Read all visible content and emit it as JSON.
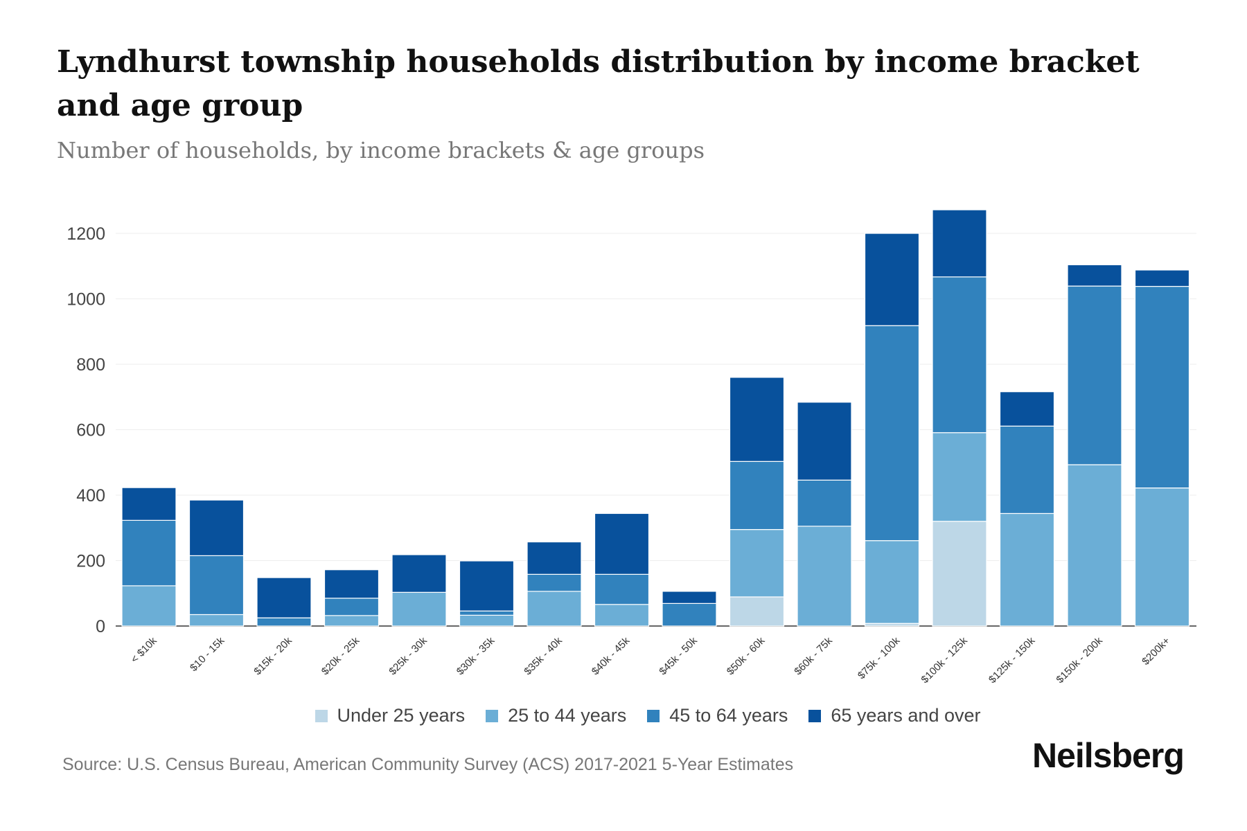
{
  "title": "Lyndhurst township households distribution by income bracket and age group",
  "subtitle": "Number of households, by income brackets & age groups",
  "source": "Source: U.S. Census Bureau, American Community Survey (ACS) 2017-2021 5-Year Estimates",
  "logo": "Neilsberg",
  "chart_data": {
    "type": "bar",
    "stacked": true,
    "title": "Lyndhurst township households distribution by income bracket and age group",
    "xlabel": "",
    "ylabel": "",
    "ylim": [
      0,
      1300
    ],
    "yticks": [
      0,
      200,
      400,
      600,
      800,
      1000,
      1200
    ],
    "grid": true,
    "legend_position": "bottom",
    "categories": [
      "< $10k",
      "$10 - 15k",
      "$15k - 20k",
      "$20k - 25k",
      "$25k - 30k",
      "$30k - 35k",
      "$35k - 40k",
      "$40k - 45k",
      "$45k - 50k",
      "$50k - 60k",
      "$60k - 75k",
      "$75k - 100k",
      "$100k - 125k",
      "$125k - 150k",
      "$150k - 200k",
      "$200k+"
    ],
    "series": [
      {
        "name": "Under 25 years",
        "color": "#bdd7e7",
        "values": [
          0,
          0,
          0,
          0,
          0,
          0,
          0,
          0,
          0,
          89,
          0,
          8,
          320,
          0,
          0,
          0
        ]
      },
      {
        "name": "25 to 44 years",
        "color": "#6baed6",
        "values": [
          123,
          35,
          0,
          32,
          103,
          33,
          106,
          66,
          0,
          206,
          305,
          253,
          271,
          344,
          493,
          422
        ]
      },
      {
        "name": "45 to 64 years",
        "color": "#3182bd",
        "values": [
          200,
          180,
          25,
          53,
          0,
          13,
          52,
          92,
          69,
          208,
          141,
          657,
          476,
          267,
          546,
          616
        ]
      },
      {
        "name": "65 years and over",
        "color": "#08519c",
        "values": [
          100,
          170,
          123,
          87,
          115,
          153,
          99,
          186,
          37,
          257,
          238,
          282,
          205,
          105,
          65,
          50
        ]
      }
    ]
  }
}
